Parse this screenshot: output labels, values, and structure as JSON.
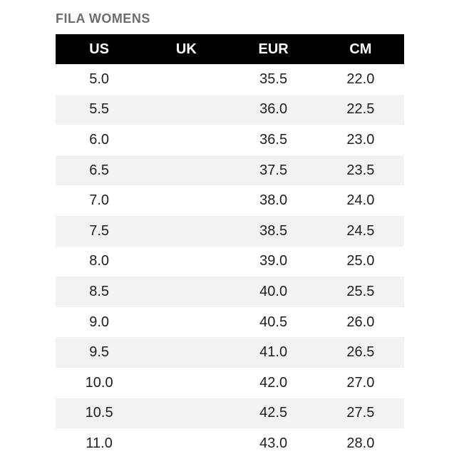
{
  "page": {
    "title": "FILA WOMENS"
  },
  "colors": {
    "header_bg": "#000000",
    "header_text": "#ffffff",
    "stripe_bg": "#f2f2f2",
    "title_color": "#6d6d6d",
    "cell_text": "#1e1e1e",
    "page_bg": "#ffffff"
  },
  "table": {
    "columns": [
      "US",
      "UK",
      "EUR",
      "CM"
    ],
    "rows": [
      [
        "5.0",
        "",
        "35.5",
        "22.0"
      ],
      [
        "5.5",
        "",
        "36.0",
        "22.5"
      ],
      [
        "6.0",
        "",
        "36.5",
        "23.0"
      ],
      [
        "6.5",
        "",
        "37.5",
        "23.5"
      ],
      [
        "7.0",
        "",
        "38.0",
        "24.0"
      ],
      [
        "7.5",
        "",
        "38.5",
        "24.5"
      ],
      [
        "8.0",
        "",
        "39.0",
        "25.0"
      ],
      [
        "8.5",
        "",
        "40.0",
        "25.5"
      ],
      [
        "9.0",
        "",
        "40.5",
        "26.0"
      ],
      [
        "9.5",
        "",
        "41.0",
        "26.5"
      ],
      [
        "10.0",
        "",
        "42.0",
        "27.0"
      ],
      [
        "10.5",
        "",
        "42.5",
        "27.5"
      ],
      [
        "11.0",
        "",
        "43.0",
        "28.0"
      ]
    ]
  }
}
